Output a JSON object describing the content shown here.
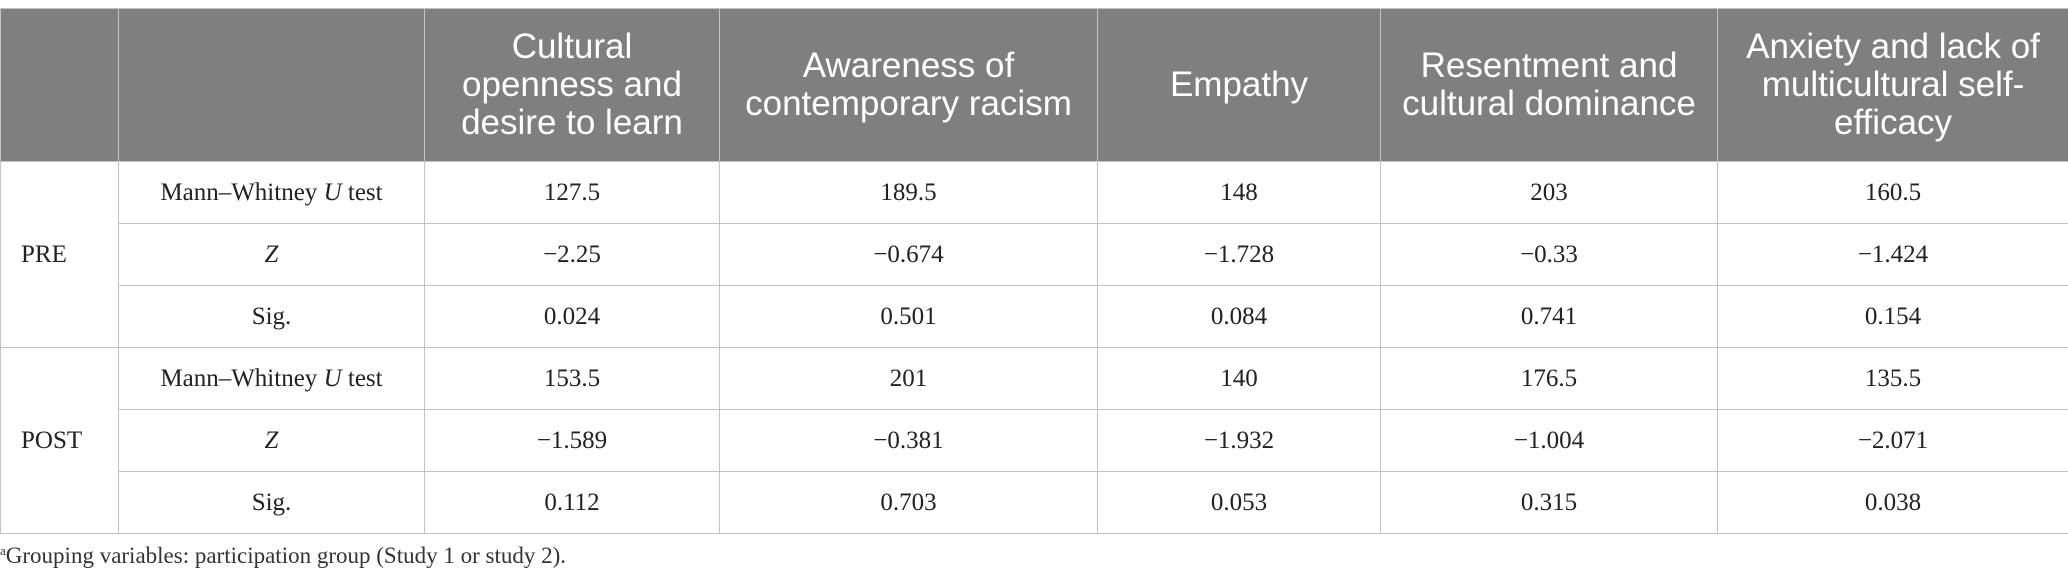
{
  "table": {
    "headers": [
      "",
      "",
      "Cultural openness and desire to learn",
      "Awareness of contemporary racism",
      "Empathy",
      "Resentment and cultural dominance",
      "Anxiety and lack of multicultural self-efficacy"
    ],
    "groups": [
      {
        "label": "PRE",
        "rows": [
          {
            "stat_pre": "Mann–Whitney ",
            "stat_italic": "U",
            "stat_post": " test",
            "values": [
              "127.5",
              "189.5",
              "148",
              "203",
              "160.5"
            ]
          },
          {
            "stat_pre": "",
            "stat_italic": "Z",
            "stat_post": "",
            "values": [
              "−2.25",
              "−0.674",
              "−1.728",
              "−0.33",
              "−1.424"
            ]
          },
          {
            "stat_pre": "Sig.",
            "stat_italic": "",
            "stat_post": "",
            "values": [
              "0.024",
              "0.501",
              "0.084",
              "0.741",
              "0.154"
            ]
          }
        ]
      },
      {
        "label": "POST",
        "rows": [
          {
            "stat_pre": "Mann–Whitney ",
            "stat_italic": "U",
            "stat_post": " test",
            "values": [
              "153.5",
              "201",
              "140",
              "176.5",
              "135.5"
            ]
          },
          {
            "stat_pre": "",
            "stat_italic": "Z",
            "stat_post": "",
            "values": [
              "−1.589",
              "−0.381",
              "−1.932",
              "−1.004",
              "−2.071"
            ]
          },
          {
            "stat_pre": "Sig.",
            "stat_italic": "",
            "stat_post": "",
            "values": [
              "0.112",
              "0.703",
              "0.053",
              "0.315",
              "0.038"
            ]
          }
        ]
      }
    ]
  },
  "footnote": {
    "marker": "a",
    "text": "Grouping variables: participation group (Study 1 or study 2)."
  }
}
